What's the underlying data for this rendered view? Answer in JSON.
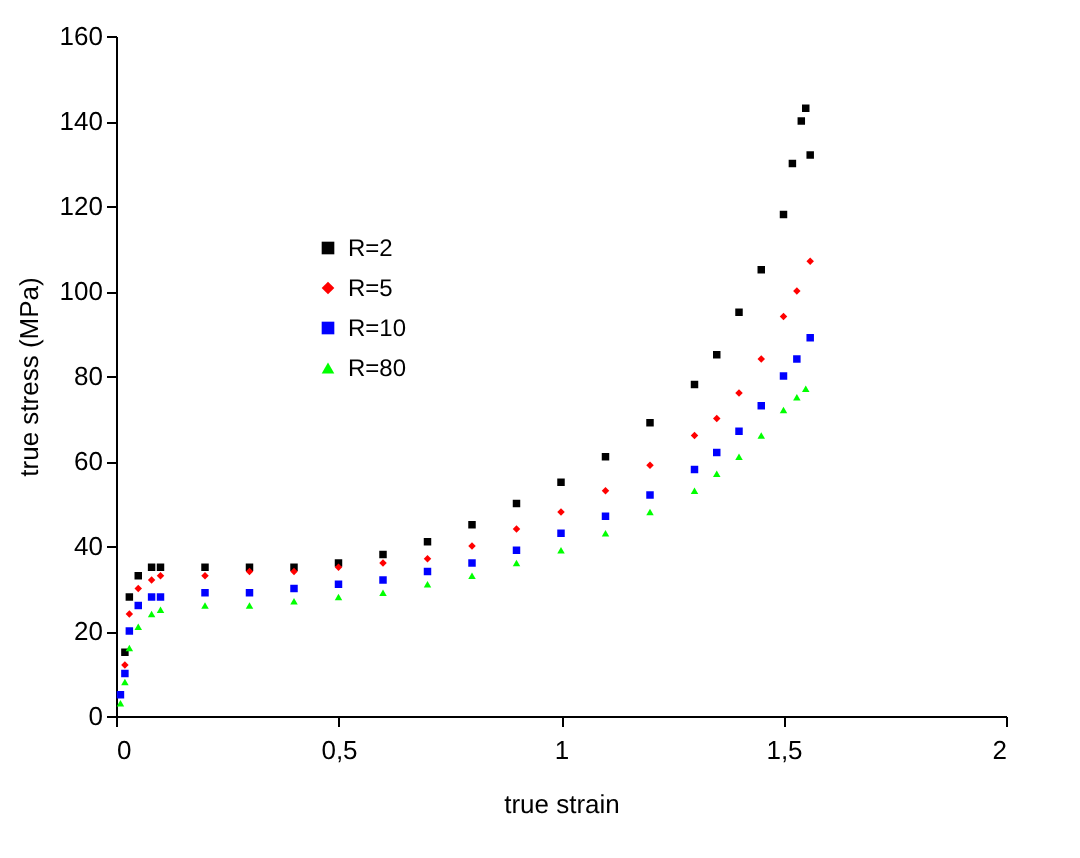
{
  "chart_data": {
    "type": "scatter",
    "xlabel": "true strain",
    "ylabel": "true stress (MPa)",
    "xlim": [
      0,
      2
    ],
    "xticks": [
      0,
      {
        "value": 0.5,
        "label": "0,5"
      },
      1,
      {
        "value": 1.5,
        "label": "1,5"
      },
      2
    ],
    "ylim": [
      0,
      160
    ],
    "yticks": [
      0,
      20,
      40,
      60,
      80,
      100,
      120,
      140,
      160
    ],
    "grid": false,
    "legend": "top left",
    "series": [
      {
        "name": "R=2",
        "color": "#000000",
        "marker": "square",
        "x": [
          0.02,
          0.03,
          0.05,
          0.08,
          0.1,
          0.2,
          0.3,
          0.4,
          0.5,
          0.6,
          0.7,
          0.8,
          0.9,
          1.0,
          1.1,
          1.2,
          1.3,
          1.35,
          1.4,
          1.45,
          1.5,
          1.52,
          1.54,
          1.55,
          1.56
        ],
        "values": [
          15,
          28,
          33,
          35,
          35,
          35,
          35,
          35,
          36,
          38,
          41,
          45,
          50,
          55,
          61,
          69,
          78,
          85,
          95,
          105,
          118,
          130,
          140,
          143,
          132
        ]
      },
      {
        "name": "R=5",
        "color": "#ff0000",
        "marker": "diamond",
        "x": [
          0.02,
          0.03,
          0.05,
          0.08,
          0.1,
          0.2,
          0.3,
          0.4,
          0.5,
          0.6,
          0.7,
          0.8,
          0.9,
          1.0,
          1.1,
          1.2,
          1.3,
          1.35,
          1.4,
          1.45,
          1.5,
          1.53,
          1.56
        ],
        "values": [
          12,
          24,
          30,
          32,
          33,
          33,
          34,
          34,
          35,
          36,
          37,
          40,
          44,
          48,
          53,
          59,
          66,
          70,
          76,
          84,
          94,
          100,
          107
        ]
      },
      {
        "name": "R=10",
        "color": "#0000ff",
        "marker": "square",
        "x": [
          0.01,
          0.02,
          0.03,
          0.05,
          0.08,
          0.1,
          0.2,
          0.3,
          0.4,
          0.5,
          0.6,
          0.7,
          0.8,
          0.9,
          1.0,
          1.1,
          1.2,
          1.3,
          1.35,
          1.4,
          1.45,
          1.5,
          1.53,
          1.56
        ],
        "values": [
          5,
          10,
          20,
          26,
          28,
          28,
          29,
          29,
          30,
          31,
          32,
          34,
          36,
          39,
          43,
          47,
          52,
          58,
          62,
          67,
          73,
          80,
          84,
          89
        ]
      },
      {
        "name": "R=80",
        "color": "#00ff00",
        "marker": "triangle",
        "x": [
          0.01,
          0.02,
          0.03,
          0.05,
          0.08,
          0.1,
          0.2,
          0.3,
          0.4,
          0.5,
          0.6,
          0.7,
          0.8,
          0.9,
          1.0,
          1.1,
          1.2,
          1.3,
          1.35,
          1.4,
          1.45,
          1.5,
          1.53,
          1.55
        ],
        "values": [
          3,
          8,
          16,
          21,
          24,
          25,
          26,
          26,
          27,
          28,
          29,
          31,
          33,
          36,
          39,
          43,
          48,
          53,
          57,
          61,
          66,
          72,
          75,
          77
        ]
      }
    ]
  }
}
